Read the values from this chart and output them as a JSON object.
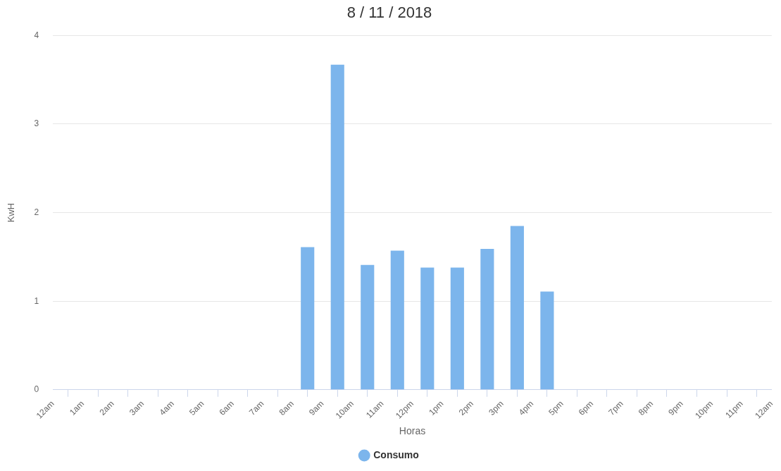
{
  "chart_data": {
    "type": "bar",
    "title": "8 / 11 / 2018",
    "xlabel": "Horas",
    "ylabel": "KwH",
    "x": [
      "2018-11-08T08:30",
      "2018-11-08T09:30",
      "2018-11-08T10:30",
      "2018-11-08T11:30",
      "2018-11-08T12:30",
      "2018-11-08T13:30",
      "2018-11-08T14:30",
      "2018-11-08T15:30",
      "2018-11-08T16:30"
    ],
    "series": [
      {
        "name": "Consumo",
        "color": "#7cb5ec",
        "values": [
          1.61,
          3.67,
          1.41,
          1.57,
          1.38,
          1.38,
          1.59,
          1.85,
          1.11
        ]
      }
    ],
    "xlim": [
      "2018-11-08T00:00",
      "2018-11-09T00:00"
    ],
    "xticks": [
      {
        "value": "2018-11-08T00:00",
        "label": "12am"
      },
      {
        "value": "2018-11-08T01:00",
        "label": "1am"
      },
      {
        "value": "2018-11-08T02:00",
        "label": "2am"
      },
      {
        "value": "2018-11-08T03:00",
        "label": "3am"
      },
      {
        "value": "2018-11-08T04:00",
        "label": "4am"
      },
      {
        "value": "2018-11-08T05:00",
        "label": "5am"
      },
      {
        "value": "2018-11-08T06:00",
        "label": "6am"
      },
      {
        "value": "2018-11-08T07:00",
        "label": "7am"
      },
      {
        "value": "2018-11-08T08:00",
        "label": "8am"
      },
      {
        "value": "2018-11-08T09:00",
        "label": "9am"
      },
      {
        "value": "2018-11-08T10:00",
        "label": "10am"
      },
      {
        "value": "2018-11-08T11:00",
        "label": "11am"
      },
      {
        "value": "2018-11-08T12:00",
        "label": "12pm"
      },
      {
        "value": "2018-11-08T13:00",
        "label": "1pm"
      },
      {
        "value": "2018-11-08T14:00",
        "label": "2pm"
      },
      {
        "value": "2018-11-08T15:00",
        "label": "3pm"
      },
      {
        "value": "2018-11-08T16:00",
        "label": "4pm"
      },
      {
        "value": "2018-11-08T17:00",
        "label": "5pm"
      },
      {
        "value": "2018-11-08T18:00",
        "label": "6pm"
      },
      {
        "value": "2018-11-08T19:00",
        "label": "7pm"
      },
      {
        "value": "2018-11-08T20:00",
        "label": "8pm"
      },
      {
        "value": "2018-11-08T21:00",
        "label": "9pm"
      },
      {
        "value": "2018-11-08T22:00",
        "label": "10pm"
      },
      {
        "value": "2018-11-08T23:00",
        "label": "11pm"
      },
      {
        "value": "2018-11-09T00:00",
        "label": "12am"
      }
    ],
    "ylim": [
      0,
      4
    ],
    "yticks": [
      0,
      1,
      2,
      3,
      4
    ],
    "grid": "y",
    "legend": "bottom"
  }
}
